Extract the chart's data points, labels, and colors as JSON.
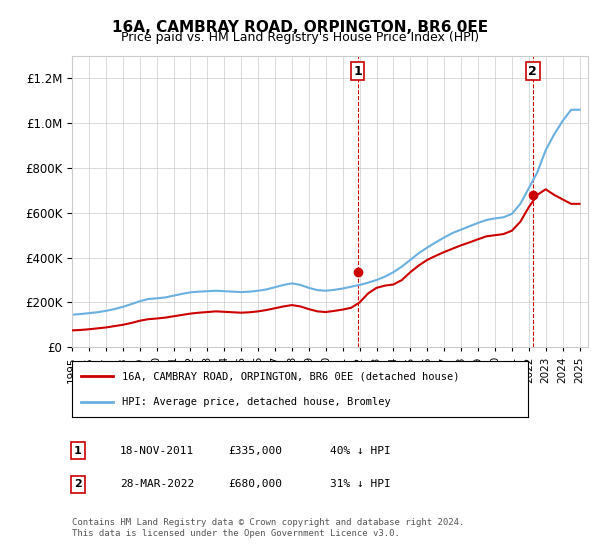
{
  "title": "16A, CAMBRAY ROAD, ORPINGTON, BR6 0EE",
  "subtitle": "Price paid vs. HM Land Registry's House Price Index (HPI)",
  "hpi_label": "HPI: Average price, detached house, Bromley",
  "house_label": "16A, CAMBRAY ROAD, ORPINGTON, BR6 0EE (detached house)",
  "hpi_color": "#6ab0e0",
  "house_color": "#cc0000",
  "annotation1_date": "18-NOV-2011",
  "annotation1_price": "£335,000",
  "annotation1_hpi": "40% ↓ HPI",
  "annotation1_year": 2011.88,
  "annotation1_value": 335000,
  "annotation2_date": "28-MAR-2022",
  "annotation2_price": "£680,000",
  "annotation2_hpi": "31% ↓ HPI",
  "annotation2_year": 2022.24,
  "annotation2_value": 680000,
  "ylim_max": 1300000,
  "xlabel_years": [
    1995,
    1996,
    1997,
    1998,
    1999,
    2000,
    2001,
    2002,
    2003,
    2004,
    2005,
    2006,
    2007,
    2008,
    2009,
    2010,
    2011,
    2012,
    2013,
    2014,
    2015,
    2016,
    2017,
    2018,
    2019,
    2020,
    2021,
    2022,
    2023,
    2024,
    2025
  ],
  "hpi_years": [
    1995,
    1995.5,
    1996,
    1996.5,
    1997,
    1997.5,
    1998,
    1998.5,
    1999,
    1999.5,
    2000,
    2000.5,
    2001,
    2001.5,
    2002,
    2002.5,
    2003,
    2003.5,
    2004,
    2004.5,
    2005,
    2005.5,
    2006,
    2006.5,
    2007,
    2007.5,
    2008,
    2008.5,
    2009,
    2009.5,
    2010,
    2010.5,
    2011,
    2011.5,
    2012,
    2012.5,
    2013,
    2013.5,
    2014,
    2014.5,
    2015,
    2015.5,
    2016,
    2016.5,
    2017,
    2017.5,
    2018,
    2018.5,
    2019,
    2019.5,
    2020,
    2020.5,
    2021,
    2021.5,
    2022,
    2022.5,
    2023,
    2023.5,
    2024,
    2024.5,
    2025
  ],
  "hpi_values": [
    145000,
    148000,
    152000,
    156000,
    162000,
    170000,
    180000,
    192000,
    205000,
    215000,
    218000,
    222000,
    230000,
    238000,
    245000,
    248000,
    250000,
    252000,
    250000,
    248000,
    246000,
    248000,
    252000,
    258000,
    268000,
    278000,
    285000,
    278000,
    265000,
    255000,
    252000,
    256000,
    262000,
    270000,
    278000,
    288000,
    300000,
    315000,
    335000,
    360000,
    390000,
    420000,
    445000,
    468000,
    490000,
    510000,
    525000,
    540000,
    555000,
    568000,
    575000,
    580000,
    595000,
    640000,
    710000,
    780000,
    880000,
    950000,
    1010000,
    1060000,
    1060000
  ],
  "house_years": [
    1995,
    1995.5,
    1996,
    1996.5,
    1997,
    1997.5,
    1998,
    1998.5,
    1999,
    1999.5,
    2000,
    2000.5,
    2001,
    2001.5,
    2002,
    2002.5,
    2003,
    2003.5,
    2004,
    2004.5,
    2005,
    2005.5,
    2006,
    2006.5,
    2007,
    2007.5,
    2008,
    2008.5,
    2009,
    2009.5,
    2010,
    2010.5,
    2011,
    2011.5,
    2012,
    2012.5,
    2013,
    2013.5,
    2014,
    2014.5,
    2015,
    2015.5,
    2016,
    2016.5,
    2017,
    2017.5,
    2018,
    2018.5,
    2019,
    2019.5,
    2020,
    2020.5,
    2021,
    2021.5,
    2022,
    2022.5,
    2023,
    2023.5,
    2024,
    2024.5,
    2025
  ],
  "house_values": [
    75000,
    77000,
    80000,
    84000,
    88000,
    94000,
    100000,
    108000,
    118000,
    125000,
    128000,
    132000,
    138000,
    144000,
    150000,
    154000,
    157000,
    160000,
    158000,
    156000,
    154000,
    156000,
    160000,
    166000,
    174000,
    182000,
    188000,
    182000,
    170000,
    160000,
    157000,
    162000,
    168000,
    176000,
    200000,
    240000,
    265000,
    275000,
    280000,
    300000,
    335000,
    365000,
    390000,
    408000,
    425000,
    440000,
    455000,
    468000,
    482000,
    495000,
    500000,
    505000,
    520000,
    560000,
    625000,
    680000,
    705000,
    680000,
    660000,
    640000,
    640000
  ],
  "footer": "Contains HM Land Registry data © Crown copyright and database right 2024.\nThis data is licensed under the Open Government Licence v3.0.",
  "background_color": "#ffffff",
  "grid_color": "#cccccc"
}
